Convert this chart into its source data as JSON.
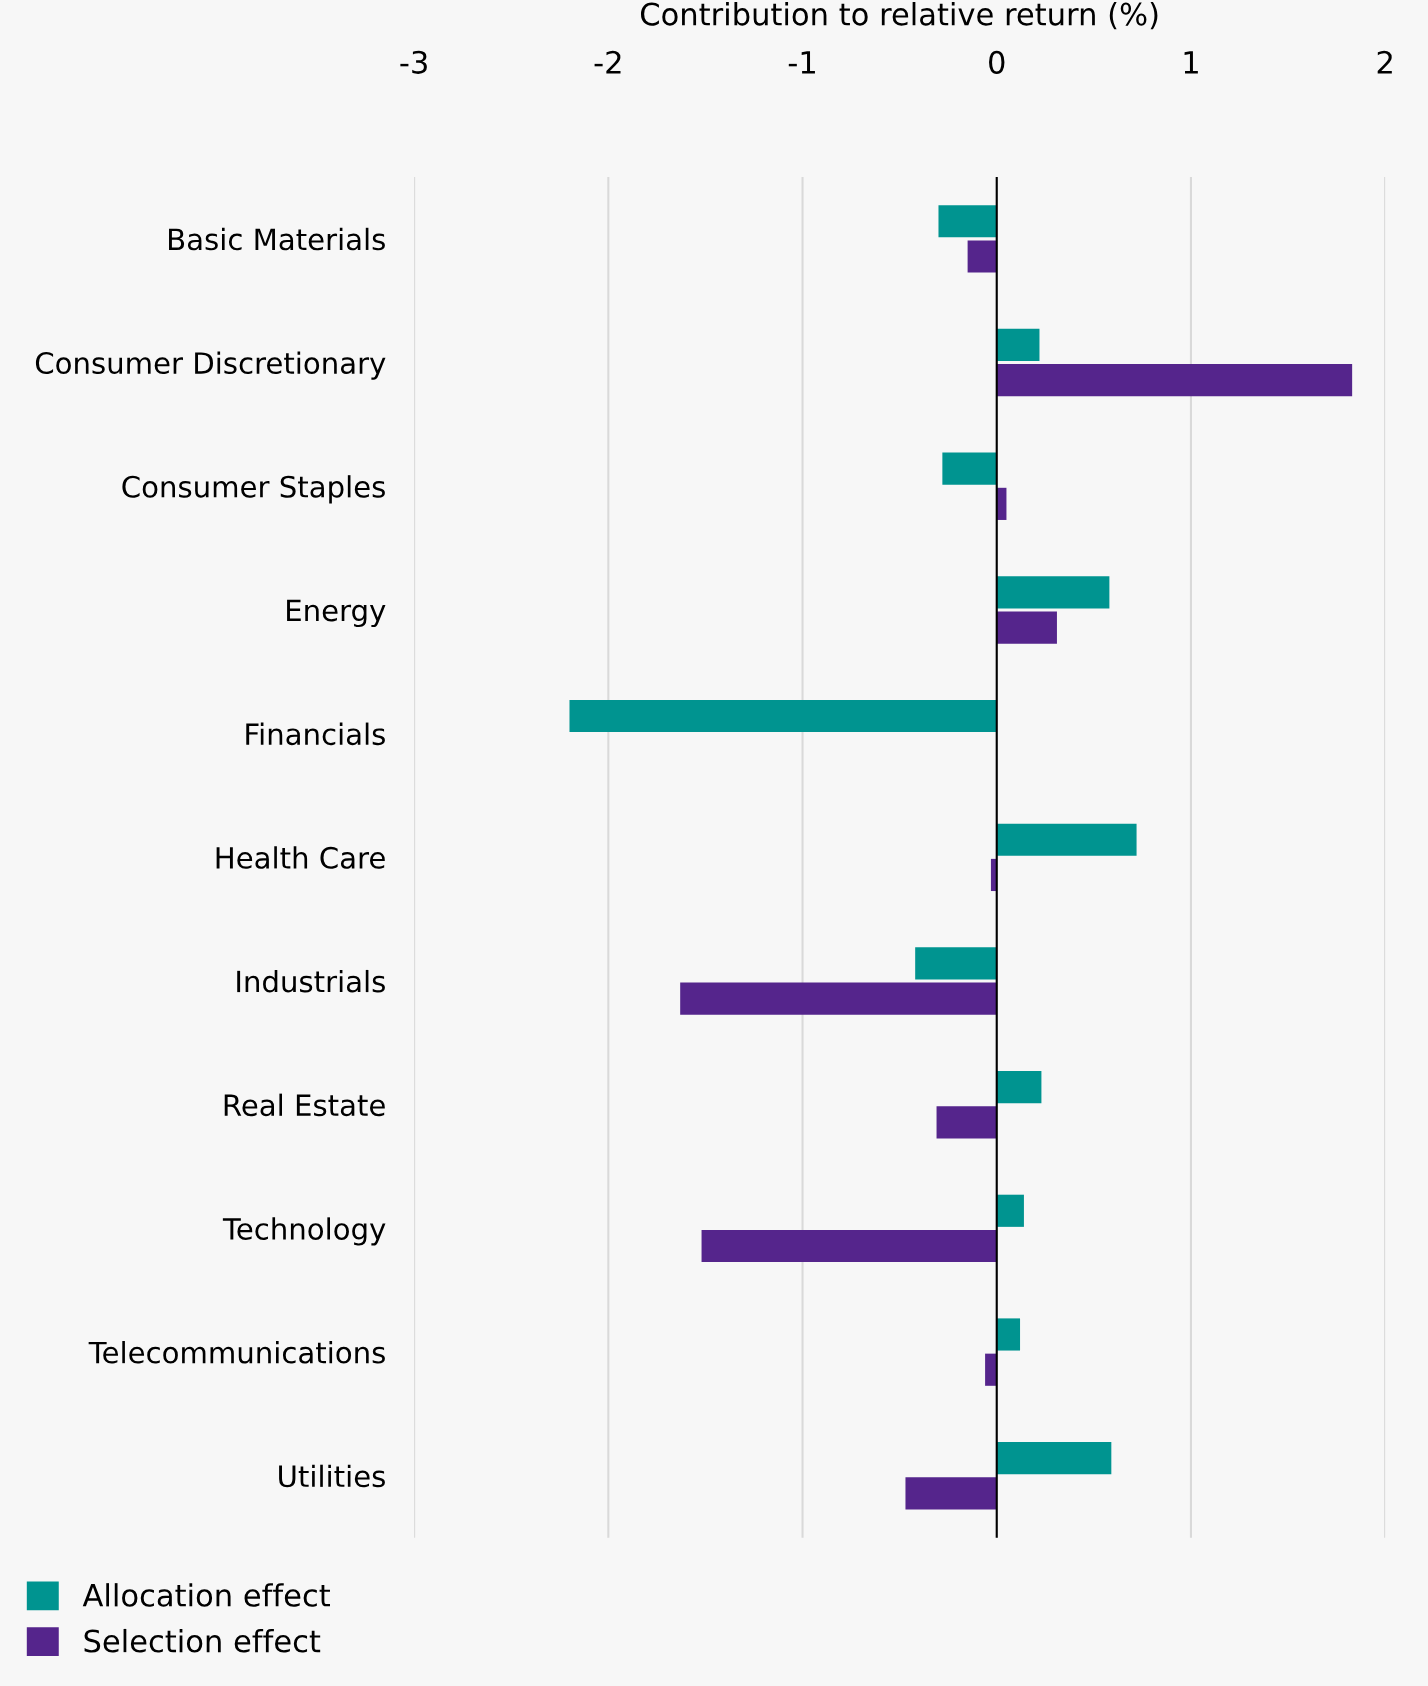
{
  "chart_data": {
    "type": "bar",
    "orientation": "horizontal",
    "xlabel": "Contribution to relative return (%)",
    "categories": [
      "Basic Materials",
      "Consumer Discretionary",
      "Consumer Staples",
      "Energy",
      "Financials",
      "Health Care",
      "Industrials",
      "Real Estate",
      "Technology",
      "Telecommunications",
      "Utilities"
    ],
    "series": [
      {
        "name": "Allocation effect",
        "color": "#009490",
        "values": [
          -0.3,
          0.22,
          -0.28,
          0.58,
          -2.2,
          0.72,
          -0.42,
          0.23,
          0.14,
          0.12,
          0.59
        ]
      },
      {
        "name": "Selection effect",
        "color": "#55258c",
        "values": [
          -0.15,
          1.83,
          0.05,
          0.31,
          0,
          -0.03,
          -1.63,
          -0.31,
          -1.52,
          -0.06,
          -0.47
        ]
      }
    ],
    "xlim": [
      -3,
      2
    ],
    "xticks": [
      {
        "value": -3,
        "label": "-3"
      },
      {
        "value": -2,
        "label": "-2"
      },
      {
        "value": -1,
        "label": "-1"
      },
      0,
      1,
      2
    ],
    "grid": "x",
    "legend": "bottom left",
    "ref_lines": [
      {
        "axis": "x",
        "value": 0,
        "color": "#000000"
      }
    ]
  }
}
